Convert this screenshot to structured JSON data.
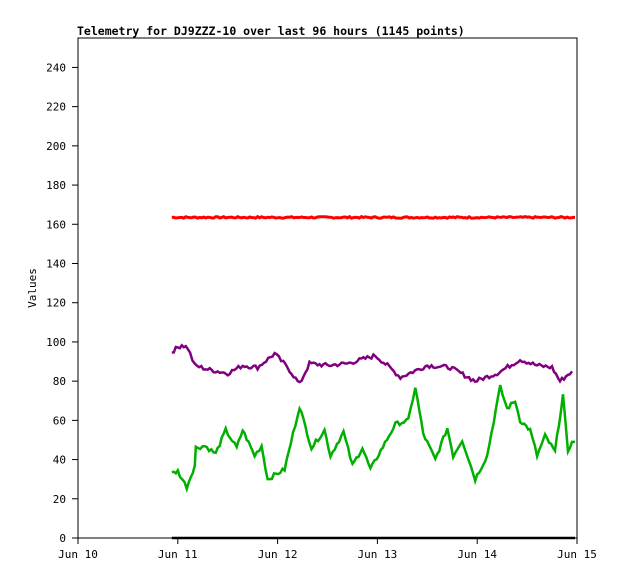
{
  "chart_data": {
    "type": "line",
    "title": "Telemetry for DJ9ZZZ-10 over last 96 hours (1145 points)",
    "xlabel": "",
    "ylabel": "Values",
    "x_unit": "days since Jun 10 00:00",
    "xlim": [
      0,
      5
    ],
    "ylim": [
      0,
      255
    ],
    "x_ticks": [
      {
        "v": 0,
        "label": "Jun 10"
      },
      {
        "v": 1,
        "label": "Jun 11"
      },
      {
        "v": 2,
        "label": "Jun 12"
      },
      {
        "v": 3,
        "label": "Jun 13"
      },
      {
        "v": 4,
        "label": "Jun 14"
      },
      {
        "v": 5,
        "label": "Jun 15"
      }
    ],
    "y_ticks": [
      0,
      20,
      40,
      60,
      80,
      100,
      120,
      140,
      160,
      180,
      200,
      220,
      240
    ],
    "grid": false,
    "series": [
      {
        "name": "red",
        "color": "#ff0000",
        "points": [
          [
            0.94,
            163.5
          ],
          [
            1.5,
            163.5
          ],
          [
            2.0,
            163.5
          ],
          [
            2.5,
            163.5
          ],
          [
            3.0,
            163.5
          ],
          [
            3.5,
            163.5
          ],
          [
            4.0,
            163.5
          ],
          [
            4.5,
            163.5
          ],
          [
            4.98,
            163.5
          ]
        ]
      },
      {
        "name": "purple",
        "color": "#800080",
        "points": [
          [
            0.94,
            95
          ],
          [
            1.04,
            98.5
          ],
          [
            1.1,
            97
          ],
          [
            1.17,
            88
          ],
          [
            1.3,
            86
          ],
          [
            1.5,
            84
          ],
          [
            1.65,
            88
          ],
          [
            1.8,
            87
          ],
          [
            1.97,
            94
          ],
          [
            2.1,
            87
          ],
          [
            2.22,
            78.5
          ],
          [
            2.32,
            89
          ],
          [
            2.5,
            88
          ],
          [
            2.7,
            89
          ],
          [
            2.98,
            93
          ],
          [
            3.1,
            88
          ],
          [
            3.23,
            82
          ],
          [
            3.5,
            88
          ],
          [
            3.73,
            87
          ],
          [
            3.98,
            80
          ],
          [
            4.2,
            84
          ],
          [
            4.43,
            91
          ],
          [
            4.6,
            88
          ],
          [
            4.75,
            87
          ],
          [
            4.83,
            80
          ],
          [
            4.95,
            85
          ]
        ]
      },
      {
        "name": "green",
        "color": "#00b000",
        "points": [
          [
            0.94,
            33
          ],
          [
            1.0,
            34
          ],
          [
            1.09,
            26
          ],
          [
            1.17,
            37
          ],
          [
            1.18,
            46
          ],
          [
            1.27,
            47
          ],
          [
            1.38,
            43
          ],
          [
            1.48,
            55
          ],
          [
            1.59,
            46
          ],
          [
            1.65,
            55
          ],
          [
            1.77,
            42
          ],
          [
            1.84,
            47
          ],
          [
            1.9,
            30
          ],
          [
            2.07,
            35
          ],
          [
            2.22,
            67
          ],
          [
            2.34,
            46
          ],
          [
            2.47,
            55
          ],
          [
            2.53,
            42
          ],
          [
            2.66,
            54
          ],
          [
            2.75,
            37
          ],
          [
            2.85,
            46
          ],
          [
            2.93,
            35
          ],
          [
            3.18,
            58
          ],
          [
            3.31,
            60
          ],
          [
            3.38,
            77
          ],
          [
            3.46,
            53
          ],
          [
            3.58,
            40
          ],
          [
            3.7,
            56
          ],
          [
            3.76,
            42
          ],
          [
            3.85,
            50
          ],
          [
            3.98,
            30
          ],
          [
            4.1,
            42
          ],
          [
            4.23,
            77
          ],
          [
            4.3,
            66
          ],
          [
            4.38,
            70
          ],
          [
            4.43,
            60
          ],
          [
            4.53,
            55
          ],
          [
            4.6,
            42
          ],
          [
            4.68,
            52
          ],
          [
            4.78,
            44
          ],
          [
            4.86,
            73
          ],
          [
            4.91,
            43
          ],
          [
            4.95,
            50
          ],
          [
            4.98,
            49
          ]
        ]
      },
      {
        "name": "black",
        "color": "#000000",
        "points": [
          [
            0.94,
            0
          ],
          [
            4.98,
            0
          ]
        ]
      }
    ]
  }
}
